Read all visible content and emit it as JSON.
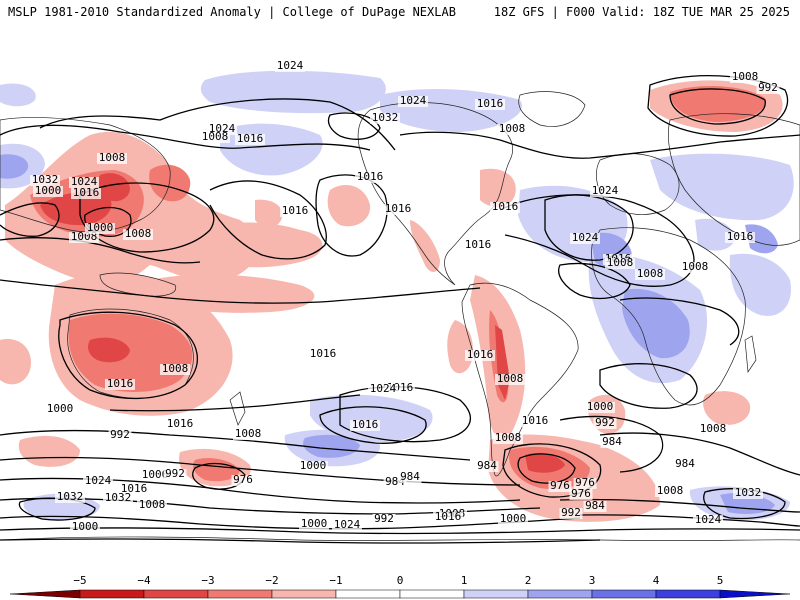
{
  "header": {
    "left_title": "MSLP 1981-2010 Standardized Anomaly | College of DuPage NEXLAB",
    "right_title": "18Z GFS | F000 Valid: 18Z TUE MAR 25 2025"
  },
  "colors": {
    "neg5": "#7a0000",
    "neg4": "#c81a1a",
    "neg3": "#e04646",
    "neg2": "#f07a72",
    "neg1": "#f7b6ae",
    "zero": "#ffffff",
    "pos1": "#cfd2f6",
    "pos2": "#9ea4ee",
    "pos3": "#6a70e6",
    "pos4": "#3b40de",
    "pos5": "#0a0fc8"
  },
  "colorbar": {
    "ticks": [
      "−5",
      "−4",
      "−3",
      "−2",
      "−1",
      "0",
      "1",
      "2",
      "3",
      "4",
      "5"
    ]
  },
  "isobar_labels": [
    {
      "text": "1024"
    },
    {
      "text": "1008"
    },
    {
      "text": "992"
    },
    {
      "text": "1024"
    },
    {
      "text": "1016"
    },
    {
      "text": "1032"
    },
    {
      "text": "1008"
    },
    {
      "text": "1024"
    },
    {
      "text": "1016"
    },
    {
      "text": "1008"
    },
    {
      "text": "1008"
    },
    {
      "text": "1032"
    },
    {
      "text": "1024"
    },
    {
      "text": "1000"
    },
    {
      "text": "1016"
    },
    {
      "text": "1008"
    },
    {
      "text": "1000"
    },
    {
      "text": "1008"
    },
    {
      "text": "1016"
    },
    {
      "text": "1016"
    },
    {
      "text": "1016"
    },
    {
      "text": "1016"
    },
    {
      "text": "1024"
    },
    {
      "text": "1024"
    },
    {
      "text": "1016"
    },
    {
      "text": "1016"
    },
    {
      "text": "1008"
    },
    {
      "text": "1008"
    },
    {
      "text": "1008"
    },
    {
      "text": "1016"
    },
    {
      "text": "1016"
    },
    {
      "text": "1016"
    },
    {
      "text": "1016"
    },
    {
      "text": "1008"
    },
    {
      "text": "1016"
    },
    {
      "text": "1008"
    },
    {
      "text": "1016"
    },
    {
      "text": "1024"
    },
    {
      "text": "1000"
    },
    {
      "text": "1016"
    },
    {
      "text": "1008"
    },
    {
      "text": "1016"
    },
    {
      "text": "1000"
    },
    {
      "text": "992"
    },
    {
      "text": "984"
    },
    {
      "text": "992"
    },
    {
      "text": "1008"
    },
    {
      "text": "984"
    },
    {
      "text": "1000"
    },
    {
      "text": "1008"
    },
    {
      "text": "1000"
    },
    {
      "text": "992"
    },
    {
      "text": "976"
    },
    {
      "text": "984"
    },
    {
      "text": "1024"
    },
    {
      "text": "1016"
    },
    {
      "text": "1032"
    },
    {
      "text": "1008"
    },
    {
      "text": "1032"
    },
    {
      "text": "1000"
    },
    {
      "text": "992"
    },
    {
      "text": "976"
    },
    {
      "text": "984"
    },
    {
      "text": "984"
    },
    {
      "text": "976"
    },
    {
      "text": "976"
    },
    {
      "text": "984"
    },
    {
      "text": "992"
    },
    {
      "text": "1008"
    },
    {
      "text": "1032"
    },
    {
      "text": "1000"
    },
    {
      "text": "1024"
    },
    {
      "text": "992"
    },
    {
      "text": "1016"
    },
    {
      "text": "1008"
    },
    {
      "text": "1000"
    },
    {
      "text": "1024"
    }
  ]
}
